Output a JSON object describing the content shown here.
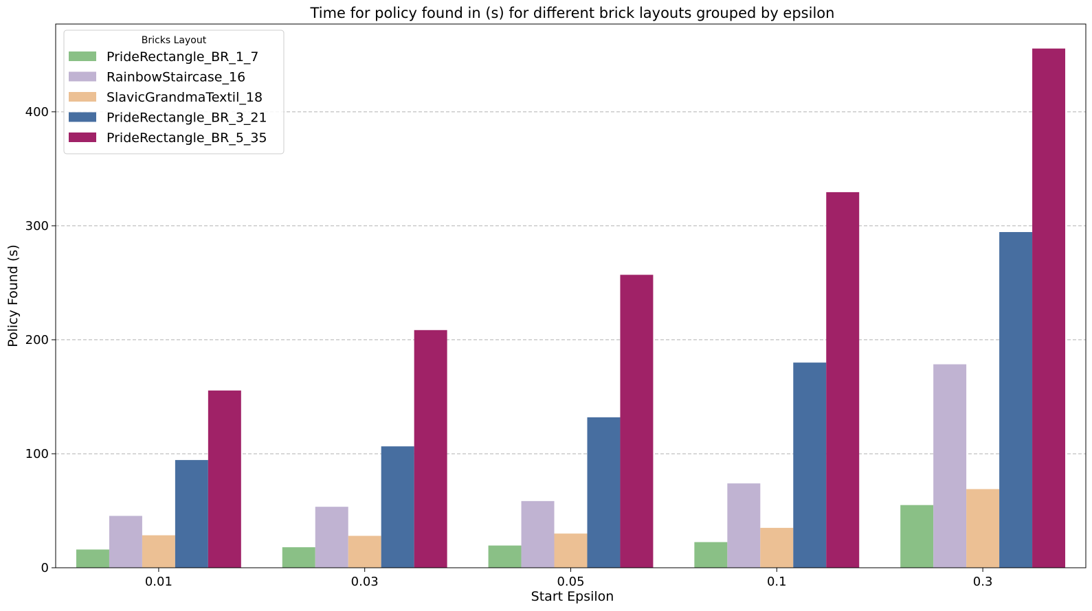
{
  "chart_data": {
    "type": "bar",
    "title": "Time for policy found in (s) for different brick layouts grouped by epsilon",
    "xlabel": "Start Epsilon",
    "ylabel": "Policy Found (s)",
    "categories": [
      "0.01",
      "0.03",
      "0.05",
      "0.1",
      "0.3"
    ],
    "ylim": [
      0,
      477
    ],
    "yticks": [
      0,
      100,
      200,
      300,
      400
    ],
    "grid": "y-dashed",
    "legend": {
      "title": "Bricks Layout",
      "placement": "top-left"
    },
    "series": [
      {
        "name": "PrideRectangle_BR_1_7",
        "color": "#8ac086",
        "values": [
          16,
          18,
          19.5,
          22.5,
          55
        ]
      },
      {
        "name": "RainbowStaircase_16",
        "color": "#c0b3d2",
        "values": [
          45.5,
          53.5,
          58.5,
          74,
          178.5
        ]
      },
      {
        "name": "SlavicGrandmaTextil_18",
        "color": "#ecc094",
        "values": [
          28.5,
          28,
          30,
          35,
          69
        ]
      },
      {
        "name": "PrideRectangle_BR_3_21",
        "color": "#476ea0",
        "values": [
          94.5,
          106.5,
          132,
          180,
          294.5
        ]
      },
      {
        "name": "PrideRectangle_BR_5_35",
        "color": "#a02267",
        "values": [
          155.5,
          208.5,
          257,
          329.5,
          455.5
        ]
      }
    ]
  }
}
